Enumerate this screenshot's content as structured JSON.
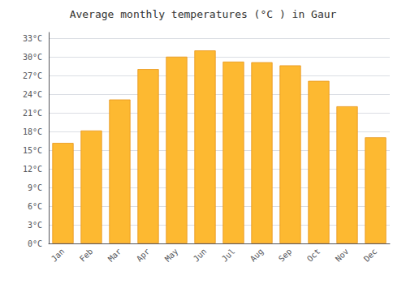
{
  "chart_data": {
    "type": "bar",
    "title": "Average monthly temperatures (°C ) in Gaur",
    "categories": [
      "Jan",
      "Feb",
      "Mar",
      "Apr",
      "May",
      "Jun",
      "Jul",
      "Aug",
      "Sep",
      "Oct",
      "Nov",
      "Dec"
    ],
    "values": [
      16.2,
      18.2,
      23.2,
      28.1,
      30.1,
      31.1,
      29.3,
      29.2,
      28.7,
      26.2,
      22.1,
      17.1
    ],
    "color": "#FDB931",
    "ylim": [
      0,
      34
    ],
    "yticks": [
      {
        "value": 0,
        "label": "0°C"
      },
      {
        "value": 3,
        "label": "3°C"
      },
      {
        "value": 6,
        "label": "6°C"
      },
      {
        "value": 9,
        "label": "9°C"
      },
      {
        "value": 12,
        "label": "12°C"
      },
      {
        "value": 15,
        "label": "15°C"
      },
      {
        "value": 18,
        "label": "18°C"
      },
      {
        "value": 21,
        "label": "21°C"
      },
      {
        "value": 24,
        "label": "24°C"
      },
      {
        "value": 27,
        "label": "27°C"
      },
      {
        "value": 30,
        "label": "30°C"
      },
      {
        "value": 33,
        "label": "33°C"
      }
    ],
    "grid": true
  }
}
